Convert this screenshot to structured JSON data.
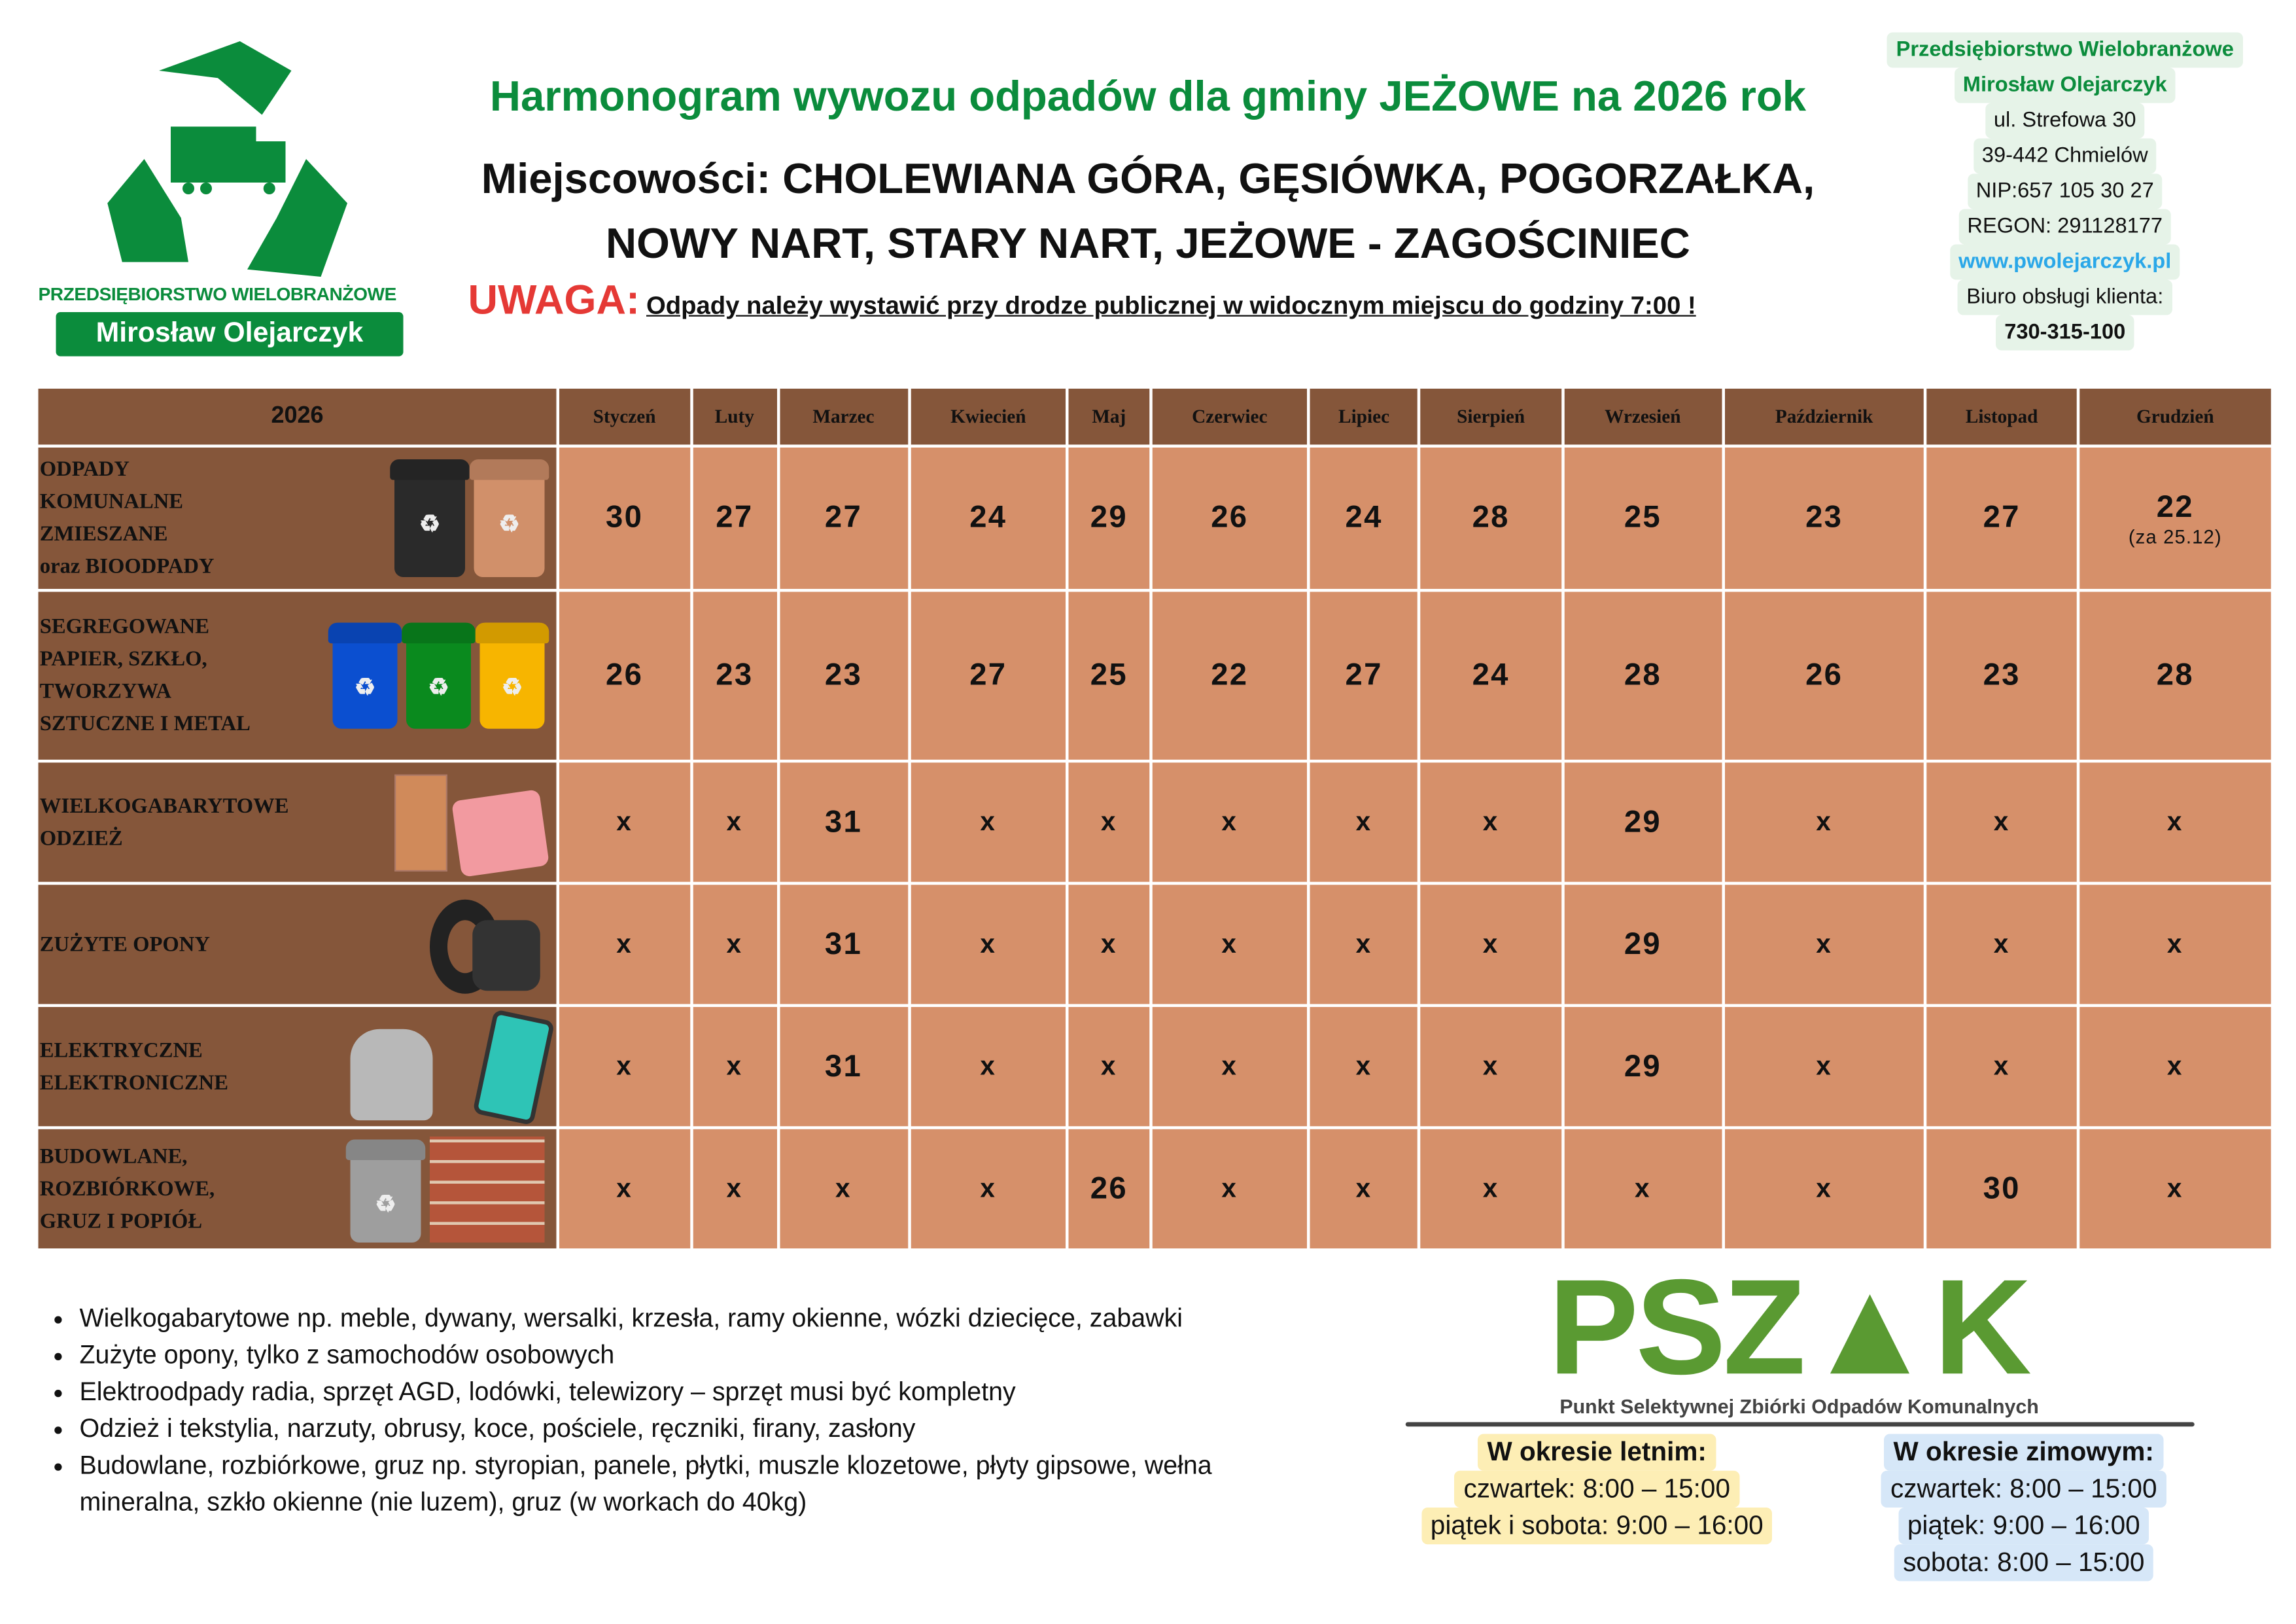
{
  "logo": {
    "company_line": "PRZEDSIĘBIORSTWO WIELOBRANŻOWE",
    "name": "Mirosław Olejarczyk",
    "colors": {
      "brand": "#0b8c3c"
    },
    "icon": "recycle-truck-icon"
  },
  "header": {
    "title": "Harmonogram wywozu odpadów dla gminy JEŻOWE na 2026 rok",
    "places_line1": "Miejscowości: CHOLEWIANA GÓRA, GĘSIÓWKA, POGORZAŁKA,",
    "places_line2": "NOWY NART, STARY NART, JEŻOWE - ZAGOŚCINIEC",
    "warning_label": "UWAGA:",
    "warning_text": "Odpady należy wystawić przy drodze publicznej w widocznym miejscu do godziny 7:00 !"
  },
  "company": {
    "line1": "Przedsiębiorstwo Wielobranżowe",
    "line2": "Mirosław Olejarczyk",
    "street": "ul. Strefowa 30",
    "city": "39-442 Chmielów",
    "nip": "NIP:657 105 30 27",
    "regon": "REGON: 291128177",
    "website": "www.pwolejarczyk.pl",
    "office_label": "Biuro obsługi klienta:",
    "phone": "730-315-100"
  },
  "table": {
    "year": "2026",
    "months": [
      "Styczeń",
      "Luty",
      "Marzec",
      "Kwiecień",
      "Maj",
      "Czerwiec",
      "Lipiec",
      "Sierpień",
      "Wrzesień",
      "Październik",
      "Listopad",
      "Grudzień"
    ],
    "colors": {
      "header": "#85563a",
      "cell": "#d6906a"
    },
    "rows": [
      {
        "label": [
          "ODPADY",
          "KOMUNALNE",
          "ZMIESZANE",
          "oraz BIOODPADY"
        ],
        "icon": "bins-black-brown-icon",
        "values": [
          "30",
          "27",
          "27",
          "24",
          "29",
          "26",
          "24",
          "28",
          "25",
          "23",
          "27",
          "22"
        ],
        "note": "(za 25.12)"
      },
      {
        "label": [
          "SEGREGOWANE",
          "PAPIER, SZKŁO,",
          "TWORZYWA",
          "SZTUCZNE I METAL"
        ],
        "icon": "bins-blue-green-yellow-icon",
        "values": [
          "26",
          "23",
          "23",
          "27",
          "25",
          "22",
          "27",
          "24",
          "28",
          "26",
          "23",
          "28"
        ]
      },
      {
        "label": [
          "WIELKOGABARYTOWE",
          "ODZIEŻ"
        ],
        "icon": "wardrobe-clothes-icon",
        "values": [
          "x",
          "x",
          "31",
          "x",
          "x",
          "x",
          "x",
          "x",
          "29",
          "x",
          "x",
          "x"
        ]
      },
      {
        "label": [
          "ZUŻYTE OPONY"
        ],
        "icon": "tires-icon",
        "values": [
          "x",
          "x",
          "31",
          "x",
          "x",
          "x",
          "x",
          "x",
          "29",
          "x",
          "x",
          "x"
        ]
      },
      {
        "label": [
          "ELEKTRYCZNE",
          "ELEKTRONICZNE"
        ],
        "icon": "kettle-phone-icon",
        "values": [
          "x",
          "x",
          "31",
          "x",
          "x",
          "x",
          "x",
          "x",
          "29",
          "x",
          "x",
          "x"
        ]
      },
      {
        "label": [
          "BUDOWLANE,",
          "ROZBIÓRKOWE,",
          "GRUZ I POPIÓŁ"
        ],
        "icon": "grey-bin-bricks-icon",
        "values": [
          "x",
          "x",
          "x",
          "x",
          "26",
          "x",
          "x",
          "x",
          "x",
          "x",
          "30",
          "x"
        ]
      }
    ]
  },
  "notes": [
    "Wielkogabarytowe np. meble, dywany, wersalki, krzesła, ramy okienne, wózki dziecięce, zabawki",
    "Zużyte opony, tylko z samochodów osobowych",
    "Elektroodpady radia, sprzęt AGD, lodówki, telewizory – sprzęt musi być kompletny",
    "Odzież i tekstylia, narzuty, obrusy, koce, pościele, ręczniki, firany, zasłony",
    "Budowlane, rozbiórkowe, gruz np. styropian, panele, płytki, muszle klozetowe, płyty gipsowe, wełna mineralna, szkło okienne (nie luzem), gruz (w workach do 40kg)"
  ],
  "pszok": {
    "logo_text": "PSZ▲K",
    "subtitle": "Punkt Selektywnej Zbiórki Odpadów Komunalnych",
    "summer": {
      "title": "W okresie letnim:",
      "lines": [
        "czwartek: 8:00 – 15:00",
        "piątek i sobota: 9:00 – 16:00"
      ]
    },
    "winter": {
      "title": "W okresie zimowym:",
      "lines": [
        "czwartek: 8:00 – 15:00",
        "piątek: 9:00 – 16:00",
        "sobota: 8:00 – 15:00"
      ]
    }
  }
}
